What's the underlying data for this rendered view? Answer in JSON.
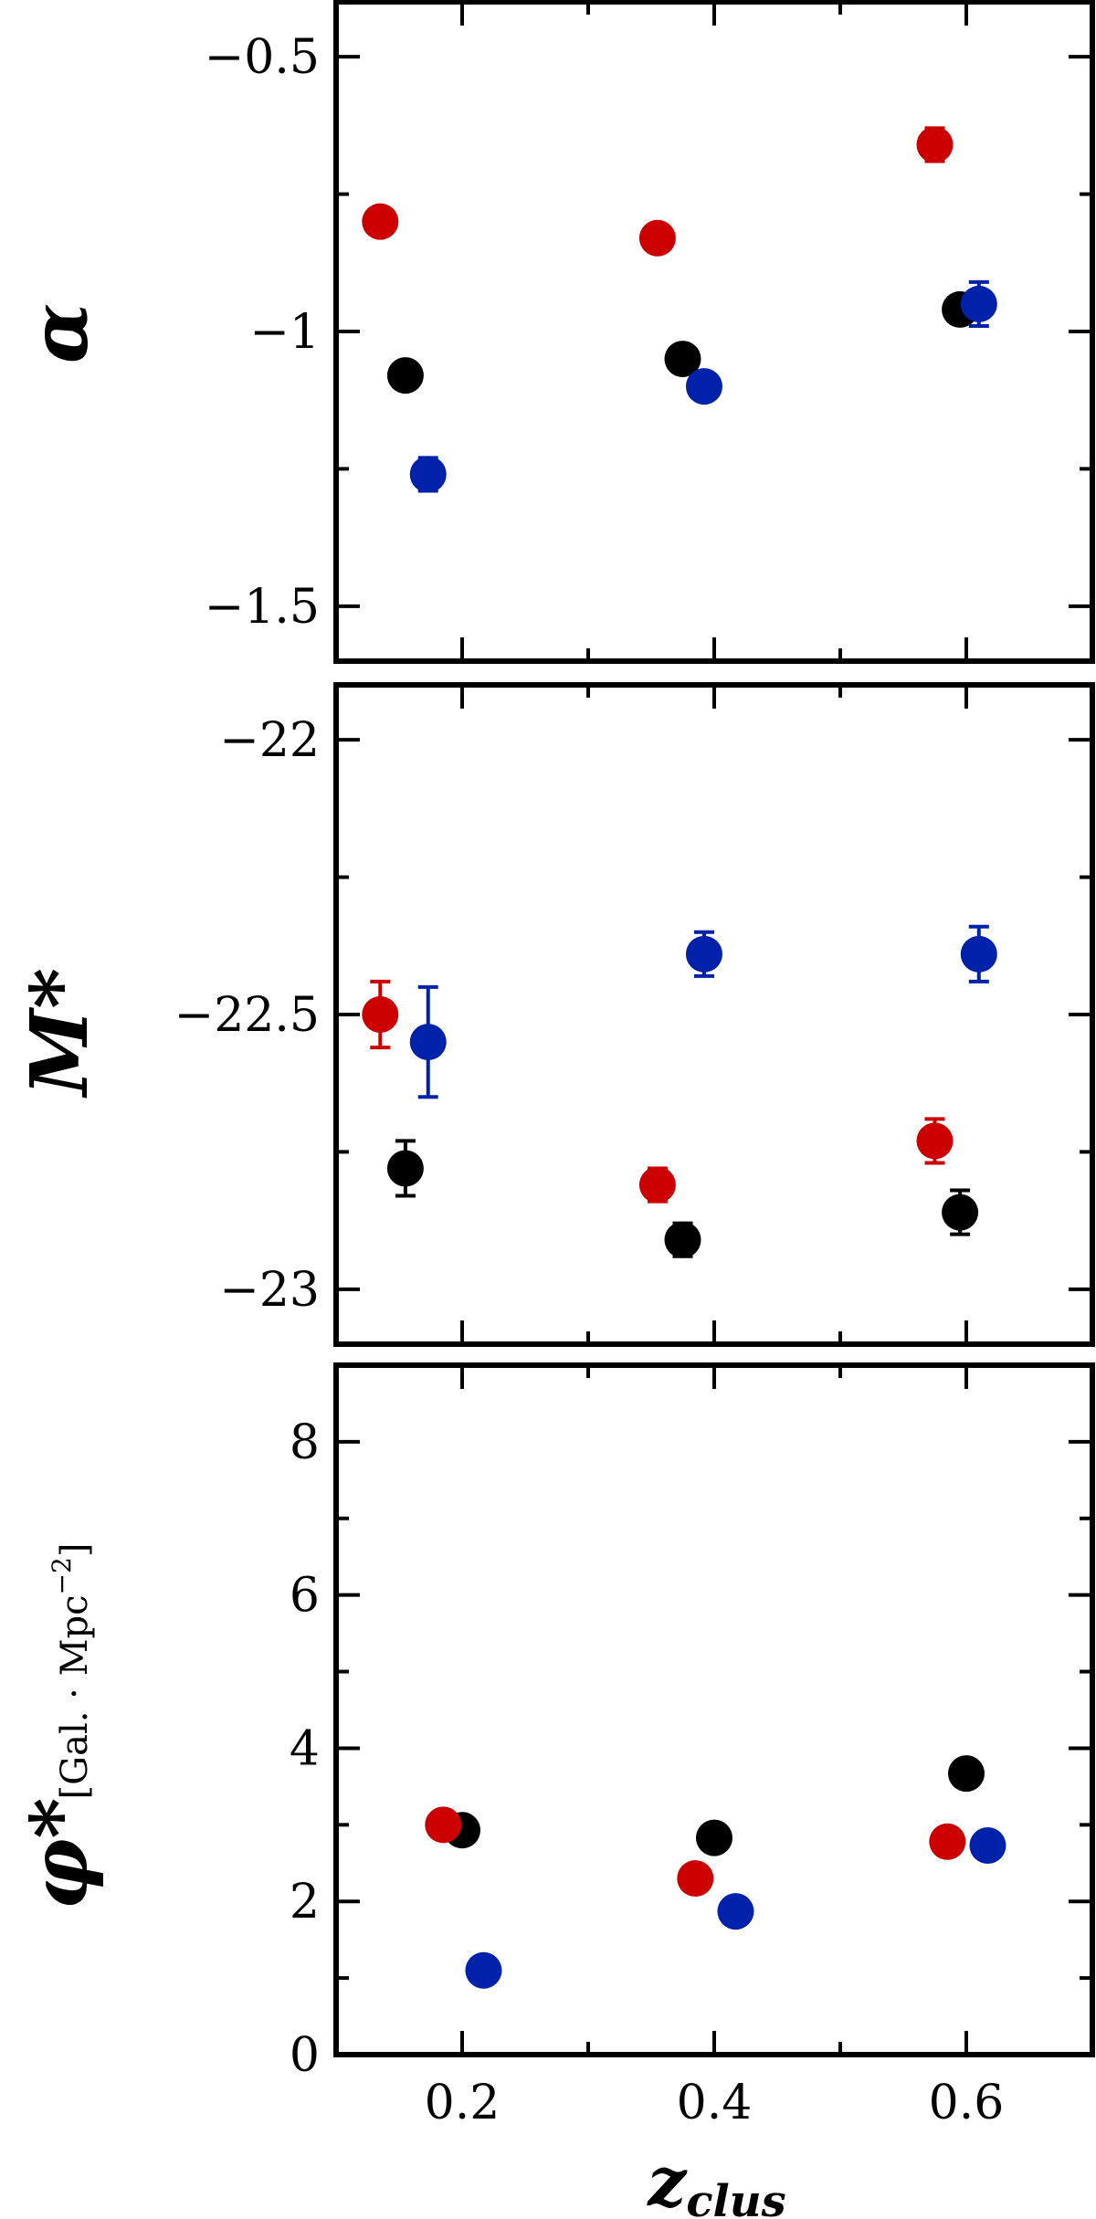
{
  "chart_data": [
    {
      "type": "scatter",
      "ylabel": "α",
      "ylim": [
        -1.6,
        -0.4
      ],
      "xlim": [
        0.1,
        0.7
      ],
      "yticks": [
        -0.5,
        -1,
        -1.5
      ],
      "ytick_labels": [
        "−0.5",
        "−1",
        "−1.5"
      ],
      "series": [
        {
          "color": "#000000",
          "points": [
            {
              "x": 0.155,
              "y": -1.08,
              "err": 0.0
            },
            {
              "x": 0.375,
              "y": -1.05,
              "err": 0.0
            },
            {
              "x": 0.595,
              "y": -0.96,
              "err": 0.0
            }
          ]
        },
        {
          "color": "#cc0000",
          "points": [
            {
              "x": 0.135,
              "y": -0.8,
              "err": 0.0
            },
            {
              "x": 0.355,
              "y": -0.83,
              "err": 0.0
            },
            {
              "x": 0.575,
              "y": -0.66,
              "err": 0.03
            }
          ]
        },
        {
          "color": "#0022aa",
          "points": [
            {
              "x": 0.173,
              "y": -1.26,
              "err": 0.03
            },
            {
              "x": 0.392,
              "y": -1.1,
              "err": 0.0
            },
            {
              "x": 0.61,
              "y": -0.95,
              "err": 0.04
            }
          ]
        }
      ]
    },
    {
      "type": "scatter",
      "ylabel": "M*",
      "ylim": [
        -23.1,
        -21.9
      ],
      "xlim": [
        0.1,
        0.7
      ],
      "yticks": [
        -22,
        -22.5,
        -23
      ],
      "ytick_labels": [
        "−22",
        "−22.5",
        "−23"
      ],
      "series": [
        {
          "color": "#000000",
          "points": [
            {
              "x": 0.155,
              "y": -22.78,
              "err": 0.05
            },
            {
              "x": 0.375,
              "y": -22.91,
              "err": 0.03
            },
            {
              "x": 0.595,
              "y": -22.86,
              "err": 0.04
            }
          ]
        },
        {
          "color": "#cc0000",
          "points": [
            {
              "x": 0.135,
              "y": -22.5,
              "err": 0.06
            },
            {
              "x": 0.355,
              "y": -22.81,
              "err": 0.03
            },
            {
              "x": 0.575,
              "y": -22.73,
              "err": 0.04
            }
          ]
        },
        {
          "color": "#0022aa",
          "points": [
            {
              "x": 0.173,
              "y": -22.55,
              "err": 0.1
            },
            {
              "x": 0.392,
              "y": -22.39,
              "err": 0.04
            },
            {
              "x": 0.61,
              "y": -22.39,
              "err": 0.05
            }
          ]
        }
      ]
    },
    {
      "type": "scatter",
      "ylabel": "φ*",
      "ylabel_unit": "[Gal. · Mpc",
      "ylabel_unit_sup": "−2",
      "ylabel_unit_close": "]",
      "xlabel": "z",
      "xlabel_sub": "clus",
      "ylim": [
        0,
        9
      ],
      "xlim": [
        0.1,
        0.7
      ],
      "yticks": [
        0,
        2,
        4,
        6,
        8
      ],
      "ytick_labels": [
        "0",
        "2",
        "4",
        "6",
        "8"
      ],
      "xticks": [
        0.2,
        0.4,
        0.6
      ],
      "xtick_labels": [
        "0.2",
        "0.4",
        "0.6"
      ],
      "series": [
        {
          "color": "#000000",
          "points": [
            {
              "x": 0.2,
              "y": 2.93,
              "err": 0.0
            },
            {
              "x": 0.4,
              "y": 2.83,
              "err": 0.0
            },
            {
              "x": 0.6,
              "y": 3.67,
              "err": 0.0
            }
          ]
        },
        {
          "color": "#cc0000",
          "points": [
            {
              "x": 0.185,
              "y": 3.0,
              "err": 0.0
            },
            {
              "x": 0.385,
              "y": 2.3,
              "err": 0.0
            },
            {
              "x": 0.585,
              "y": 2.78,
              "err": 0.0
            }
          ]
        },
        {
          "color": "#0022aa",
          "points": [
            {
              "x": 0.217,
              "y": 1.1,
              "err": 0.0
            },
            {
              "x": 0.417,
              "y": 1.87,
              "err": 0.0
            },
            {
              "x": 0.617,
              "y": 2.73,
              "err": 0.0
            }
          ]
        }
      ]
    }
  ]
}
